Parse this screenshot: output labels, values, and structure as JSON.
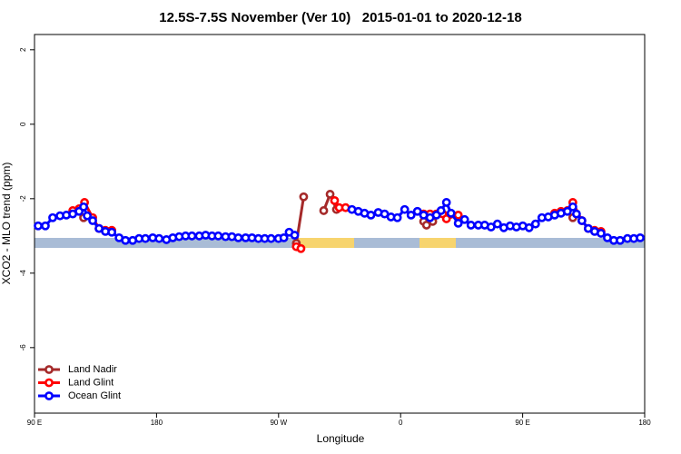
{
  "chart_data": {
    "type": "line",
    "title": "12.5S-7.5S November (Ver 10)   2015-01-01 to 2020-12-18",
    "x_label": "Longitude",
    "y_label": "XCO2 - MLO trend (ppm)",
    "xlim": [
      90,
      540
    ],
    "ylim": [
      -7.76,
      2.41
    ],
    "xticks": [
      {
        "value": 90,
        "label": "90 E"
      },
      {
        "value": 180,
        "label": "180"
      },
      {
        "value": 270,
        "label": "90 W"
      },
      {
        "value": 360,
        "label": "0"
      },
      {
        "value": 450,
        "label": "90 E"
      },
      {
        "value": 540,
        "label": "180"
      }
    ],
    "yticks": [
      2,
      0,
      -2,
      -4,
      -6
    ],
    "legend": "bottom-left",
    "series": [
      {
        "name": "Land Nadir",
        "color": "#a52a2a",
        "x": [
          126.2,
          200,
          283.1,
          288.5,
          295,
          303.3,
          308.0,
          312.7,
          340,
          377.0,
          379.1,
          383.7,
          430,
          487.0
        ],
        "values": [
          -2.51,
          null,
          -3.2,
          -1.95,
          null,
          -2.32,
          -1.88,
          -2.29,
          null,
          -2.61,
          -2.71,
          -2.61,
          null,
          -2.51
        ]
      },
      {
        "name": "Land Glint",
        "color": "#ff0000",
        "x": [
          118.2,
          122.9,
          126.9,
          132.9,
          137.6,
          142.3,
          147.0,
          200,
          283.1,
          286.5,
          300,
          311.3,
          314.7,
          319.4,
          350,
          377.0,
          381.7,
          386.4,
          391.1,
          393.8,
          402.5,
          440,
          473.6,
          478.3,
          483.0,
          487.0,
          493.7,
          498.4,
          503.1,
          507.8
        ],
        "values": [
          -2.32,
          -2.27,
          -2.1,
          -2.51,
          -2.8,
          -2.85,
          -2.85,
          null,
          -3.29,
          -3.34,
          null,
          -2.05,
          -2.24,
          -2.24,
          null,
          -2.41,
          -2.41,
          -2.41,
          -2.41,
          -2.54,
          -2.44,
          null,
          -2.39,
          -2.34,
          -2.32,
          -2.1,
          -2.59,
          -2.8,
          -2.85,
          -2.88
        ]
      },
      {
        "name": "Ocean Glint",
        "color": "#0000ff",
        "x": [
          92.7,
          98.0,
          103.4,
          108.8,
          113.5,
          118.2,
          122.9,
          126.2,
          128.9,
          132.9,
          137.6,
          142.3,
          147.0,
          152.4,
          157.1,
          162.4,
          167.1,
          171.8,
          177.2,
          181.9,
          187.3,
          192.0,
          196.7,
          201.4,
          206.1,
          211.5,
          216.2,
          220.9,
          225.5,
          230.9,
          235.6,
          240.3,
          245.7,
          250.4,
          255.1,
          259.8,
          264.5,
          269.9,
          273.9,
          277.8,
          281.9,
          300,
          324.1,
          328.8,
          333.4,
          338.1,
          343.5,
          348.2,
          352.9,
          357.6,
          363.0,
          367.7,
          372.4,
          377.0,
          381.7,
          386.4,
          389.8,
          393.8,
          397.2,
          402.5,
          407.2,
          411.9,
          417.3,
          422.0,
          426.7,
          431.4,
          436.1,
          440.8,
          445.4,
          450.1,
          454.8,
          459.5,
          464.2,
          468.9,
          473.6,
          478.3,
          483.0,
          487.0,
          489.7,
          493.7,
          498.4,
          503.1,
          507.8,
          512.5,
          517.2,
          521.9,
          527.3,
          532.0,
          536.7
        ],
        "values": [
          -2.73,
          -2.73,
          -2.51,
          -2.46,
          -2.44,
          -2.41,
          -2.34,
          -2.22,
          -2.46,
          -2.59,
          -2.8,
          -2.88,
          -2.9,
          -3.05,
          -3.12,
          -3.12,
          -3.07,
          -3.07,
          -3.05,
          -3.07,
          -3.1,
          -3.05,
          -3.02,
          -3.0,
          -3.0,
          -3.0,
          -2.98,
          -3.0,
          -3.0,
          -3.02,
          -3.02,
          -3.05,
          -3.05,
          -3.05,
          -3.07,
          -3.07,
          -3.07,
          -3.07,
          -3.05,
          -2.9,
          -2.98,
          null,
          -2.29,
          -2.34,
          -2.39,
          -2.44,
          -2.37,
          -2.41,
          -2.49,
          -2.51,
          -2.29,
          -2.44,
          -2.34,
          -2.44,
          -2.51,
          -2.44,
          -2.32,
          -2.1,
          -2.39,
          -2.66,
          -2.56,
          -2.71,
          -2.71,
          -2.71,
          -2.76,
          -2.68,
          -2.78,
          -2.73,
          -2.76,
          -2.73,
          -2.78,
          -2.68,
          -2.51,
          -2.49,
          -2.44,
          -2.39,
          -2.34,
          -2.22,
          -2.41,
          -2.59,
          -2.8,
          -2.88,
          -2.93,
          -3.05,
          -3.12,
          -3.12,
          -3.07,
          -3.07,
          -3.05
        ]
      }
    ]
  }
}
